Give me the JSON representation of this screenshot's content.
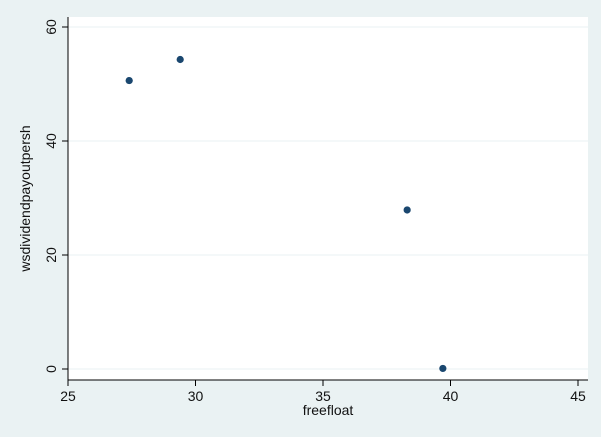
{
  "chart_data": {
    "type": "scatter",
    "title": "",
    "xlabel": "freefloat",
    "ylabel": "wsdividendpayoutpersh",
    "xlim": [
      25,
      45
    ],
    "ylim": [
      0,
      60
    ],
    "xticks": [
      25,
      30,
      35,
      40,
      45
    ],
    "yticks": [
      0,
      20,
      40,
      60
    ],
    "grid": {
      "y": true,
      "x": false
    },
    "legend": "none",
    "colors": {
      "outer_background": "#eaf2f3",
      "plot_background": "#ffffff",
      "marker": "#1a476f",
      "gridline": "#eaf2f3",
      "axis": "#000000"
    },
    "series": [
      {
        "x": [
          27.4,
          29.4,
          38.3,
          39.7
        ],
        "y": [
          50.6,
          54.3,
          27.9,
          0.1
        ]
      }
    ]
  }
}
